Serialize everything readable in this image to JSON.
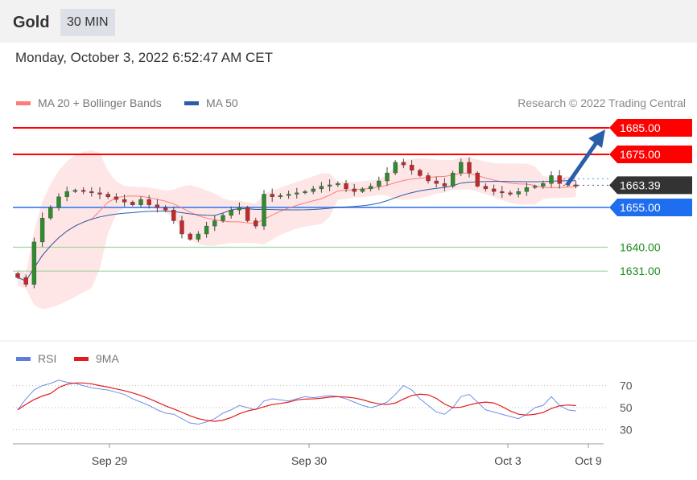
{
  "header": {
    "title": "Gold",
    "timeframe": "30 MIN"
  },
  "timestamp": "Monday, October 3, 2022 6:52:47 AM CET",
  "legend": {
    "ma20": "MA 20 + Bollinger Bands",
    "ma50": "MA 50",
    "rsi": "RSI",
    "rsi_ma": "9MA"
  },
  "credit": "Research © 2022 Trading Central",
  "colors": {
    "up": "#2e8b2e",
    "down": "#c62828",
    "resistance": "#ff0000",
    "pivot": "#1e6ef0",
    "support": "#1e8c1e",
    "current": "#333333",
    "ma50": "#2a5ea8",
    "ma20": "#ff7b7b",
    "band": "#ffe3e3"
  },
  "chart_data": [
    {
      "type": "candlestick",
      "title": "Gold 30 MIN",
      "x_labels": [
        "Sep 29",
        "Sep 30",
        "Oct 3",
        "Oct 9"
      ],
      "ylim": [
        1620,
        1688
      ],
      "closes": [
        1628.6,
        1626,
        1642,
        1651,
        1655,
        1659,
        1661,
        1661.5,
        1661,
        1660.5,
        1660,
        1659,
        1658,
        1657,
        1656,
        1658,
        1656,
        1655,
        1654,
        1650,
        1645,
        1643,
        1645,
        1648,
        1650,
        1652,
        1654,
        1655,
        1650,
        1648,
        1660,
        1659,
        1659.5,
        1660,
        1660.5,
        1661,
        1662,
        1663,
        1663.5,
        1664,
        1662,
        1661,
        1662,
        1663,
        1665,
        1668,
        1672,
        1671,
        1669,
        1667,
        1665,
        1664,
        1663,
        1668,
        1672,
        1668,
        1663,
        1662,
        1661,
        1660.5,
        1660,
        1661,
        1662.5,
        1663,
        1664,
        1667,
        1664,
        1663.5,
        1663.4
      ],
      "levels": [
        {
          "label": "1685.00",
          "value": 1685,
          "kind": "resistance"
        },
        {
          "label": "1675.00",
          "value": 1675,
          "kind": "resistance"
        },
        {
          "label": "1663.39",
          "value": 1663.39,
          "kind": "current"
        },
        {
          "label": "1655.00",
          "value": 1655,
          "kind": "pivot"
        },
        {
          "label": "1640.00",
          "value": 1640,
          "kind": "support"
        },
        {
          "label": "1631.00",
          "value": 1631,
          "kind": "support"
        }
      ],
      "target": 1685
    },
    {
      "type": "line",
      "title": "RSI",
      "ylim": [
        20,
        85
      ],
      "y_ticks": [
        "70",
        "50",
        "30"
      ],
      "rsi": [
        48,
        58,
        66,
        70,
        72,
        75,
        73,
        72,
        70,
        68,
        67,
        66,
        64,
        62,
        58,
        55,
        52,
        48,
        45,
        44,
        40,
        36,
        35,
        37,
        40,
        45,
        48,
        52,
        50,
        48,
        56,
        58,
        57,
        56,
        58,
        60,
        59,
        60,
        61,
        60,
        58,
        55,
        52,
        50,
        52,
        55,
        62,
        70,
        66,
        58,
        52,
        46,
        44,
        50,
        60,
        62,
        55,
        48,
        46,
        44,
        42,
        40,
        44,
        50,
        52,
        60,
        52,
        48,
        47
      ]
    }
  ]
}
